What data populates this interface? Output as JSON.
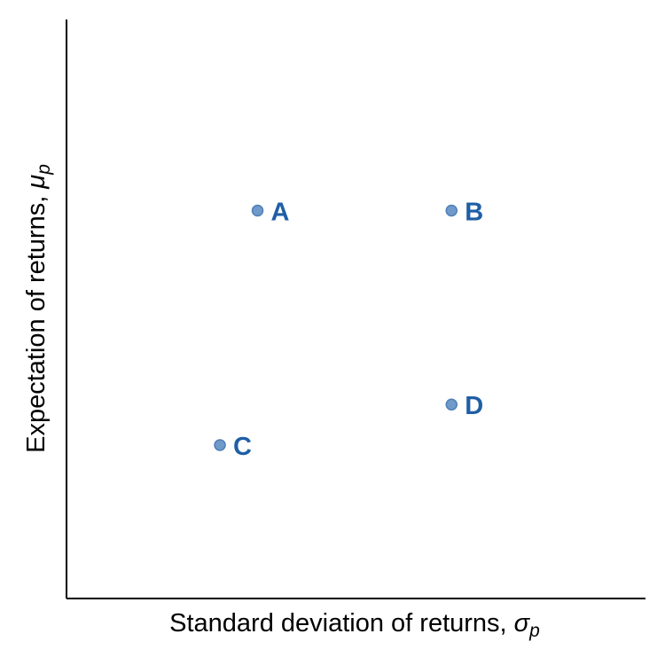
{
  "chart_data": {
    "type": "scatter",
    "title": "",
    "xlabel": {
      "text": "Standard deviation of returns, ",
      "symbol": "σ",
      "subscript": "p"
    },
    "ylabel": {
      "text": "Expectation of returns, ",
      "symbol": "μ",
      "subscript": "p"
    },
    "xlim": [
      0,
      10
    ],
    "ylim": [
      0,
      10
    ],
    "grid": false,
    "points": [
      {
        "label": "A",
        "x": 3.3,
        "y": 6.7
      },
      {
        "label": "B",
        "x": 6.65,
        "y": 6.7
      },
      {
        "label": "C",
        "x": 2.65,
        "y": 2.65
      },
      {
        "label": "D",
        "x": 6.65,
        "y": 3.35
      }
    ],
    "colors": {
      "marker_fill": "#6f9ac9",
      "marker_edge": "#4f7fb6",
      "label": "#1f5fa5",
      "axis": "#000000"
    }
  }
}
